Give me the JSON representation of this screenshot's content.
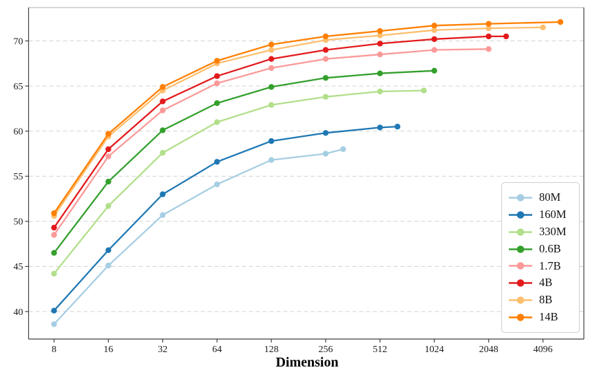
{
  "chart_data": {
    "type": "line",
    "title": "",
    "xlabel": "Dimension",
    "ylabel": "",
    "x_scale": "log2",
    "x_ticks": [
      8,
      16,
      32,
      64,
      128,
      256,
      512,
      1024,
      2048,
      4096
    ],
    "y_ticks": [
      40,
      45,
      50,
      55,
      60,
      65,
      70
    ],
    "ylim": [
      37.0,
      73.7
    ],
    "xlim": [
      5.8,
      7000
    ],
    "grid": "horizontal-dashed",
    "legend_position": "lower-right",
    "colors": {
      "grid": "#d1d1d1",
      "spine": "#3f3f3f",
      "top_spine": "#c9c9c9",
      "tick_label": "#1a1a1a"
    },
    "series": [
      {
        "name": "80M",
        "color": "#a6cee3",
        "x": [
          8,
          16,
          32,
          64,
          128,
          256,
          320
        ],
        "y": [
          38.6,
          45.1,
          50.7,
          54.1,
          56.8,
          57.5,
          58.0
        ]
      },
      {
        "name": "160M",
        "color": "#1f78b4",
        "x": [
          8,
          16,
          32,
          64,
          128,
          256,
          512,
          640
        ],
        "y": [
          40.1,
          46.8,
          53.0,
          56.6,
          58.9,
          59.8,
          60.4,
          60.5
        ]
      },
      {
        "name": "330M",
        "color": "#b2df8a",
        "x": [
          8,
          16,
          32,
          64,
          128,
          256,
          512,
          896
        ],
        "y": [
          44.2,
          51.7,
          57.6,
          61.0,
          62.9,
          63.8,
          64.4,
          64.5
        ]
      },
      {
        "name": "0.6B",
        "color": "#33a02c",
        "x": [
          8,
          16,
          32,
          64,
          128,
          256,
          512,
          1024
        ],
        "y": [
          46.5,
          54.4,
          60.1,
          63.1,
          64.9,
          65.9,
          66.4,
          66.7
        ]
      },
      {
        "name": "1.7B",
        "color": "#fb9a99",
        "x": [
          8,
          16,
          32,
          64,
          128,
          256,
          512,
          1024,
          2048
        ],
        "y": [
          48.5,
          57.2,
          62.3,
          65.3,
          67.0,
          68.0,
          68.5,
          69.0,
          69.1
        ]
      },
      {
        "name": "4B",
        "color": "#e31a1c",
        "x": [
          8,
          16,
          32,
          64,
          128,
          256,
          512,
          1024,
          2048,
          2560
        ],
        "y": [
          49.3,
          58.0,
          63.3,
          66.1,
          68.0,
          69.0,
          69.7,
          70.2,
          70.5,
          70.5
        ]
      },
      {
        "name": "8B",
        "color": "#fdbf6f",
        "x": [
          8,
          16,
          32,
          64,
          128,
          256,
          512,
          1024,
          2048,
          4096
        ],
        "y": [
          50.6,
          59.4,
          64.5,
          67.5,
          69.0,
          70.1,
          70.6,
          71.2,
          71.4,
          71.5
        ]
      },
      {
        "name": "14B",
        "color": "#ff7f00",
        "x": [
          8,
          16,
          32,
          64,
          128,
          256,
          512,
          1024,
          2048,
          5120
        ],
        "y": [
          50.9,
          59.7,
          64.9,
          67.8,
          69.6,
          70.5,
          71.1,
          71.7,
          71.9,
          72.1
        ]
      }
    ]
  }
}
